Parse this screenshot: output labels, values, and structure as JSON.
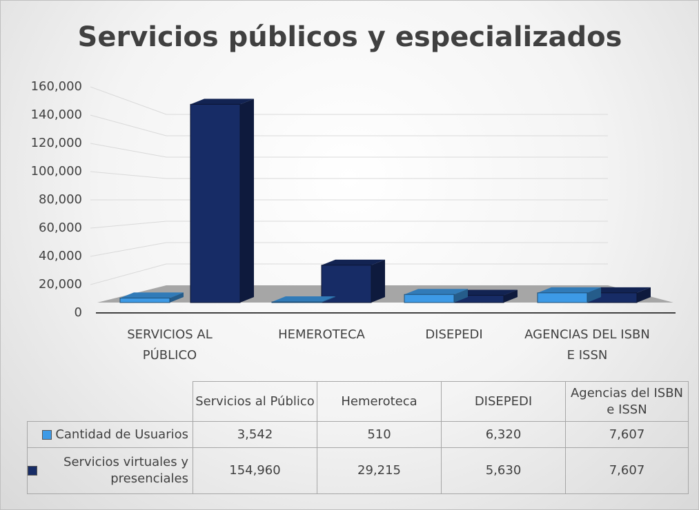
{
  "chart_data": {
    "type": "bar3d",
    "title": "Servicios públicos y especializados",
    "categories": [
      "SERVICIOS AL PÚBLICO",
      "HEMEROTECA",
      "DISEPEDI",
      "AGENCIAS DEL ISBN E ISSN"
    ],
    "table_columns": [
      "Servicios al Público",
      "Hemeroteca",
      "DISEPEDI",
      "Agencias del ISBN e ISSN"
    ],
    "series": [
      {
        "name": "Cantidad de Usuarios",
        "color": "#3d9ae6",
        "values": [
          3542,
          510,
          6320,
          7607
        ],
        "value_labels": [
          "3,542",
          "510",
          "6,320",
          "7,607"
        ]
      },
      {
        "name": "Servicios virtuales y presenciales",
        "color": "#172c66",
        "values": [
          154960,
          29215,
          5630,
          7607
        ],
        "value_labels": [
          "154,960",
          "29,215",
          "5,630",
          "7,607"
        ]
      }
    ],
    "ylim": [
      0,
      160000
    ],
    "yticks": [
      0,
      {
        "value": 20000,
        "label": "20,000"
      },
      {
        "value": 40000,
        "label": "40,000"
      },
      {
        "value": 60000,
        "label": "60,000"
      },
      {
        "value": 80000,
        "label": "80,000"
      },
      {
        "value": 100000,
        "label": "100,000"
      },
      {
        "value": 120000,
        "label": "120,000"
      },
      {
        "value": 140000,
        "label": "140,000"
      },
      {
        "value": 160000,
        "label": "160,000"
      }
    ],
    "grid": true
  }
}
